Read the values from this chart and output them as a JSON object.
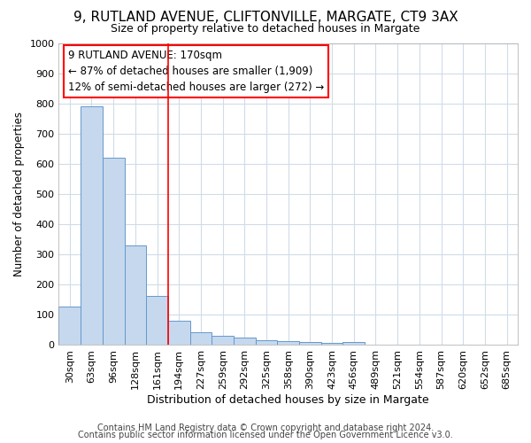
{
  "title1": "9, RUTLAND AVENUE, CLIFTONVILLE, MARGATE, CT9 3AX",
  "title2": "Size of property relative to detached houses in Margate",
  "xlabel": "Distribution of detached houses by size in Margate",
  "ylabel": "Number of detached properties",
  "footer1": "Contains HM Land Registry data © Crown copyright and database right 2024.",
  "footer2": "Contains public sector information licensed under the Open Government Licence v3.0.",
  "annotation_line1": "9 RUTLAND AVENUE: 170sqm",
  "annotation_line2": "← 87% of detached houses are smaller (1,909)",
  "annotation_line3": "12% of semi-detached houses are larger (272) →",
  "bar_labels": [
    "30sqm",
    "63sqm",
    "96sqm",
    "128sqm",
    "161sqm",
    "194sqm",
    "227sqm",
    "259sqm",
    "292sqm",
    "325sqm",
    "358sqm",
    "390sqm",
    "423sqm",
    "456sqm",
    "489sqm",
    "521sqm",
    "554sqm",
    "587sqm",
    "620sqm",
    "652sqm",
    "685sqm"
  ],
  "bar_values": [
    125,
    790,
    620,
    330,
    163,
    80,
    42,
    30,
    22,
    15,
    12,
    10,
    7,
    8,
    0,
    0,
    0,
    0,
    0,
    0,
    0
  ],
  "bar_color": "#c5d8ee",
  "bar_edge_color": "#6699cc",
  "red_line_x": 4.5,
  "plot_bg_color": "#ffffff",
  "fig_bg_color": "#ffffff",
  "ylim": [
    0,
    1000
  ],
  "yticks": [
    0,
    100,
    200,
    300,
    400,
    500,
    600,
    700,
    800,
    900,
    1000
  ],
  "grid_color": "#d0dce8",
  "title1_fontsize": 11,
  "title2_fontsize": 9,
  "xlabel_fontsize": 9,
  "ylabel_fontsize": 8.5,
  "tick_fontsize": 8,
  "footer_fontsize": 7,
  "ann_fontsize": 8.5
}
